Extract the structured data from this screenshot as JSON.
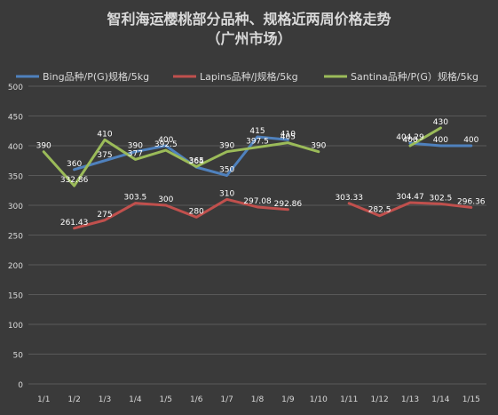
{
  "chart_data": {
    "type": "line",
    "title": "智利海运樱桃部分品种、规格近两周价格走势",
    "subtitle": "（广州市场）",
    "categories": [
      "1/1",
      "1/2",
      "1/3",
      "1/4",
      "1/5",
      "1/6",
      "1/7",
      "1/8",
      "1/9",
      "1/10",
      "1/11",
      "1/12",
      "1/13",
      "1/14",
      "1/15"
    ],
    "ylim": [
      0,
      500
    ],
    "yticks": [
      0,
      50,
      100,
      150,
      200,
      250,
      300,
      350,
      400,
      450,
      500
    ],
    "grid": true,
    "legend_position": "top",
    "series": [
      {
        "name": "Bing品种/P(G)规格/5kg",
        "color": "#4f81bd",
        "values": [
          null,
          360,
          375,
          390,
          400,
          364,
          350,
          415,
          410,
          null,
          null,
          null,
          404.29,
          400,
          400
        ]
      },
      {
        "name": "Lapins品种/J规格/5kg",
        "color": "#c0504d",
        "values": [
          null,
          261.43,
          275,
          303.5,
          300,
          280,
          310,
          297.08,
          292.86,
          null,
          303.33,
          282.5,
          304.47,
          302.5,
          296.36
        ]
      },
      {
        "name": "Santina品种/P(G）规格/5kg",
        "color": "#9bbb59",
        "values": [
          390,
          332.86,
          410,
          377,
          392.5,
          365,
          390,
          397.5,
          405,
          390,
          null,
          null,
          400,
          430,
          null
        ]
      }
    ]
  }
}
